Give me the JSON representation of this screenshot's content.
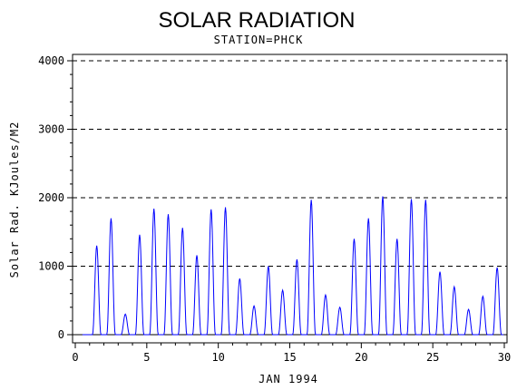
{
  "chart_data": {
    "type": "line",
    "title": "SOLAR RADIATION",
    "subtitle": "STATION=PHCK",
    "xlabel": "JAN 1994",
    "ylabel": "Solar Rad. KJoules/M2",
    "xlim": [
      0,
      30
    ],
    "ylim": [
      0,
      4000
    ],
    "x_ticks": [
      0,
      5,
      10,
      15,
      20,
      25,
      30
    ],
    "y_ticks": [
      0,
      1000,
      2000,
      3000,
      4000
    ],
    "grid": "horizontal dashed",
    "series": [
      {
        "color": "#0000ff",
        "daily_peaks": [
          {
            "day": 1,
            "peak": 1300
          },
          {
            "day": 2,
            "peak": 1700
          },
          {
            "day": 3,
            "peak": 300
          },
          {
            "day": 4,
            "peak": 1460
          },
          {
            "day": 5,
            "peak": 1840
          },
          {
            "day": 6,
            "peak": 1760
          },
          {
            "day": 7,
            "peak": 1560
          },
          {
            "day": 8,
            "peak": 1160
          },
          {
            "day": 9,
            "peak": 1830
          },
          {
            "day": 10,
            "peak": 1860
          },
          {
            "day": 11,
            "peak": 820
          },
          {
            "day": 12,
            "peak": 420
          },
          {
            "day": 13,
            "peak": 1000
          },
          {
            "day": 14,
            "peak": 650
          },
          {
            "day": 15,
            "peak": 1100
          },
          {
            "day": 16,
            "peak": 1970
          },
          {
            "day": 17,
            "peak": 580
          },
          {
            "day": 18,
            "peak": 400
          },
          {
            "day": 19,
            "peak": 1400
          },
          {
            "day": 20,
            "peak": 1700
          },
          {
            "day": 21,
            "peak": 2020
          },
          {
            "day": 22,
            "peak": 1400
          },
          {
            "day": 23,
            "peak": 1980
          },
          {
            "day": 24,
            "peak": 1970
          },
          {
            "day": 25,
            "peak": 920
          },
          {
            "day": 26,
            "peak": 700
          },
          {
            "day": 27,
            "peak": 370
          },
          {
            "day": 28,
            "peak": 560
          },
          {
            "day": 29,
            "peak": 980
          }
        ]
      }
    ]
  }
}
